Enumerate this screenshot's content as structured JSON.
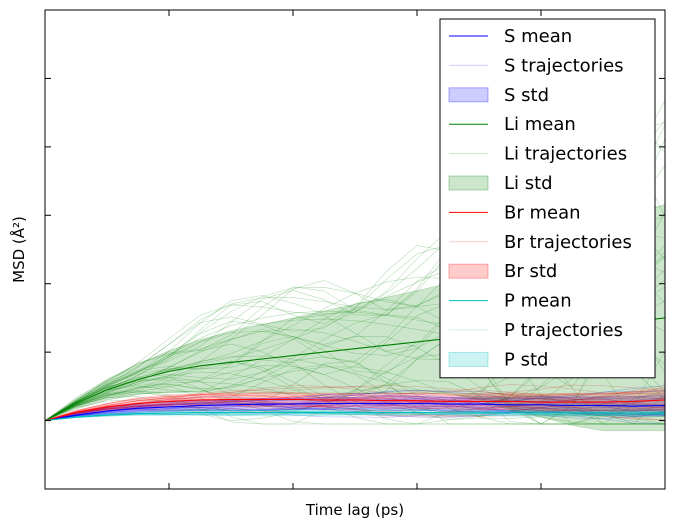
{
  "chart_data": {
    "type": "line",
    "title": "",
    "xlabel": "Time lag (ps)",
    "ylabel": "MSD (Å²)",
    "xlim": [
      0,
      5
    ],
    "ylim": [
      -1,
      6
    ],
    "x_tick_labels_visible": false,
    "y_tick_labels_visible": false,
    "grid": false,
    "legend_position": "top-right",
    "x": [
      0,
      0.25,
      0.5,
      0.75,
      1,
      1.25,
      1.5,
      1.75,
      2,
      2.25,
      2.5,
      2.75,
      3,
      3.25,
      3.5,
      3.75,
      4,
      4.25,
      4.5,
      4.75,
      5
    ],
    "series": [
      {
        "name": "S mean",
        "kind": "mean",
        "color": "#0000ff",
        "values": [
          0,
          0.08,
          0.14,
          0.18,
          0.2,
          0.22,
          0.23,
          0.24,
          0.24,
          0.25,
          0.25,
          0.25,
          0.25,
          0.24,
          0.24,
          0.23,
          0.23,
          0.22,
          0.22,
          0.21,
          0.22
        ]
      },
      {
        "name": "S trajectories",
        "kind": "trajectories",
        "color": "#0000ff"
      },
      {
        "name": "S std",
        "kind": "std",
        "color": "#0000ff",
        "values": [
          0,
          0.03,
          0.05,
          0.06,
          0.07,
          0.07,
          0.08,
          0.08,
          0.08,
          0.09,
          0.09,
          0.1,
          0.1,
          0.1,
          0.11,
          0.11,
          0.12,
          0.12,
          0.13,
          0.14,
          0.15
        ]
      },
      {
        "name": "Li mean",
        "kind": "mean",
        "color": "#008000",
        "values": [
          0,
          0.25,
          0.45,
          0.6,
          0.72,
          0.8,
          0.85,
          0.9,
          0.95,
          1.0,
          1.05,
          1.1,
          1.15,
          1.2,
          1.25,
          1.3,
          1.35,
          1.38,
          1.4,
          1.45,
          1.5
        ]
      },
      {
        "name": "Li trajectories",
        "kind": "trajectories",
        "color": "#008000"
      },
      {
        "name": "Li std",
        "kind": "std",
        "color": "#008000",
        "values": [
          0,
          0.08,
          0.15,
          0.22,
          0.3,
          0.38,
          0.45,
          0.5,
          0.55,
          0.6,
          0.65,
          0.7,
          0.75,
          0.8,
          0.95,
          1.15,
          1.3,
          1.45,
          1.55,
          1.6,
          1.65
        ]
      },
      {
        "name": "Br mean",
        "kind": "mean",
        "color": "#ff0000",
        "values": [
          0,
          0.12,
          0.2,
          0.25,
          0.28,
          0.3,
          0.31,
          0.31,
          0.31,
          0.3,
          0.3,
          0.29,
          0.29,
          0.28,
          0.28,
          0.28,
          0.27,
          0.27,
          0.27,
          0.28,
          0.3
        ]
      },
      {
        "name": "Br trajectories",
        "kind": "trajectories",
        "color": "#ff0000"
      },
      {
        "name": "Br std",
        "kind": "std",
        "color": "#ff0000",
        "values": [
          0,
          0.03,
          0.05,
          0.07,
          0.08,
          0.09,
          0.09,
          0.1,
          0.1,
          0.1,
          0.1,
          0.11,
          0.11,
          0.11,
          0.12,
          0.12,
          0.12,
          0.13,
          0.13,
          0.14,
          0.15
        ]
      },
      {
        "name": "P mean",
        "kind": "mean",
        "color": "#00bfbf",
        "values": [
          0,
          0.05,
          0.08,
          0.1,
          0.11,
          0.12,
          0.12,
          0.12,
          0.12,
          0.12,
          0.12,
          0.12,
          0.12,
          0.11,
          0.11,
          0.11,
          0.11,
          0.11,
          0.11,
          0.11,
          0.11
        ]
      },
      {
        "name": "P trajectories",
        "kind": "trajectories",
        "color": "#00bfbf"
      },
      {
        "name": "P std",
        "kind": "std",
        "color": "#00bfbf",
        "values": [
          0,
          0.01,
          0.02,
          0.02,
          0.03,
          0.03,
          0.03,
          0.03,
          0.03,
          0.03,
          0.03,
          0.03,
          0.03,
          0.03,
          0.03,
          0.03,
          0.03,
          0.03,
          0.03,
          0.03,
          0.03
        ]
      }
    ]
  }
}
